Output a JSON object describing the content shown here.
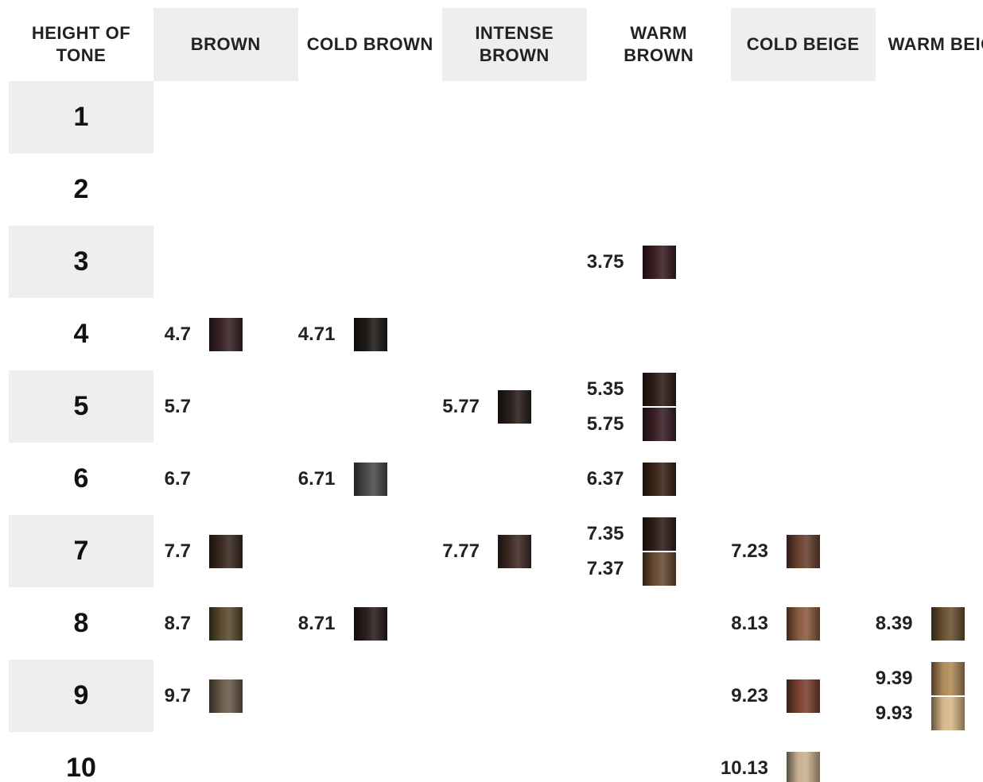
{
  "header": {
    "tone_label": "HEIGHT OF TONE",
    "columns": [
      "BROWN",
      "COLD BROWN",
      "INTENSE BROWN",
      "WARM BROWN",
      "COLD BEIGE",
      "WARM BEIGE"
    ]
  },
  "rows": [
    {
      "tone": "1",
      "cells": [
        [],
        [],
        [],
        [],
        [],
        []
      ]
    },
    {
      "tone": "2",
      "cells": [
        [],
        [],
        [],
        [],
        [],
        []
      ]
    },
    {
      "tone": "3",
      "cells": [
        [],
        [],
        [],
        [
          {
            "code": "3.75",
            "swatch": "#3a1e22"
          }
        ],
        [],
        []
      ]
    },
    {
      "tone": "4",
      "cells": [
        [
          {
            "code": "4.7",
            "swatch": "#3b2428"
          }
        ],
        [
          {
            "code": "4.71",
            "swatch": "#1e1a18"
          }
        ],
        [],
        [],
        [],
        []
      ]
    },
    {
      "tone": "5",
      "cells": [
        [
          {
            "code": "5.7"
          }
        ],
        [],
        [
          {
            "code": "5.77",
            "swatch": "#2a1e1a"
          }
        ],
        [
          {
            "code": "5.35",
            "swatch": "#2e1e16"
          },
          {
            "code": "5.75",
            "swatch": "#3a2026"
          }
        ],
        [],
        []
      ]
    },
    {
      "tone": "6",
      "cells": [
        [
          {
            "code": "6.7"
          }
        ],
        [
          {
            "code": "6.71",
            "swatch": "#4a4a48"
          }
        ],
        [],
        [
          {
            "code": "6.37",
            "swatch": "#3a2416"
          }
        ],
        [],
        []
      ]
    },
    {
      "tone": "7",
      "cells": [
        [
          {
            "code": "7.7",
            "swatch": "#3a2a20"
          }
        ],
        [],
        [
          {
            "code": "7.77",
            "swatch": "#3e2a24"
          }
        ],
        [
          {
            "code": "7.35",
            "swatch": "#2e1e16"
          },
          {
            "code": "7.37",
            "swatch": "#6a4a30"
          }
        ],
        [
          {
            "code": "7.23",
            "swatch": "#6a4030"
          }
        ],
        []
      ]
    },
    {
      "tone": "8",
      "cells": [
        [
          {
            "code": "8.7",
            "swatch": "#5a4a30"
          }
        ],
        [
          {
            "code": "8.71",
            "swatch": "#2a1e1c"
          }
        ],
        [],
        [],
        [
          {
            "code": "8.13",
            "swatch": "#8a5a40"
          }
        ],
        [
          {
            "code": "8.39",
            "swatch": "#6a5030"
          }
        ]
      ]
    },
    {
      "tone": "9",
      "cells": [
        [
          {
            "code": "9.7",
            "swatch": "#6a5a48"
          }
        ],
        [],
        [],
        [],
        [
          {
            "code": "9.23",
            "swatch": "#7a4030"
          }
        ],
        [
          {
            "code": "9.39",
            "swatch": "#b08a58"
          },
          {
            "code": "9.93",
            "swatch": "#d8b888"
          }
        ]
      ]
    },
    {
      "tone": "10",
      "cells": [
        [],
        [],
        [],
        [],
        [
          {
            "code": "10.13",
            "swatch": "#c8b090"
          }
        ],
        []
      ]
    }
  ]
}
